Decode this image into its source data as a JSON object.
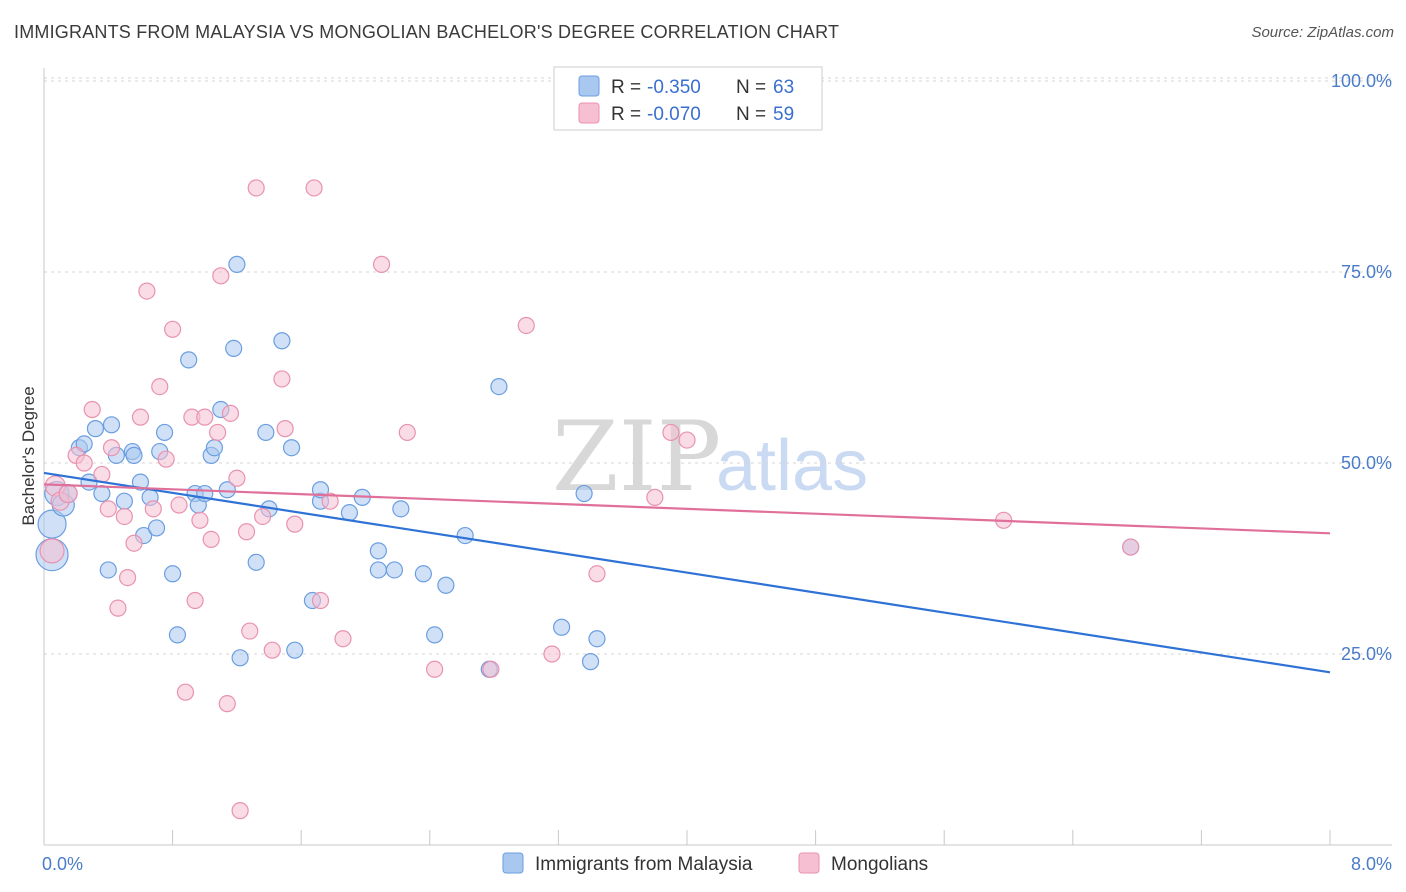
{
  "title": "IMMIGRANTS FROM MALAYSIA VS MONGOLIAN BACHELOR'S DEGREE CORRELATION CHART",
  "source": "Source: ZipAtlas.com",
  "watermark": {
    "zip": "ZIP",
    "atlas": "atlas"
  },
  "colors": {
    "blue_fill": "#a9c8f0",
    "blue_stroke": "#6b9ee0",
    "blue_line": "#2f72d6",
    "pink_fill": "#f6c0d2",
    "pink_stroke": "#e892b0",
    "pink_line": "#e0709a",
    "grid": "#d5d5d5",
    "tick_label": "#4a7cc9"
  },
  "legend": {
    "rows": [
      {
        "r_label": "R =",
        "r_value": "-0.350",
        "n_label": "N =",
        "n_value": "63",
        "color": "blue"
      },
      {
        "r_label": "R =",
        "r_value": "-0.070",
        "n_label": "N =",
        "n_value": "59",
        "color": "pink"
      }
    ]
  },
  "chart_data": {
    "type": "scatter",
    "title": "IMMIGRANTS FROM MALAYSIA VS MONGOLIAN BACHELOR'S DEGREE CORRELATION CHART",
    "xlabel": "",
    "ylabel": "Bachelor's Degree",
    "xlim": [
      0,
      8
    ],
    "ylim": [
      0,
      105
    ],
    "x_tick_labels": [
      "0.0%",
      "8.0%"
    ],
    "y_ticks": [
      25,
      50,
      75,
      100
    ],
    "y_tick_labels": [
      "25.0%",
      "50.0%",
      "75.0%",
      "100.0%"
    ],
    "grid": true,
    "legend_position": "bottom",
    "series": [
      {
        "name": "Immigrants from Malaysia",
        "color": "blue",
        "trend": {
          "x": [
            0,
            8
          ],
          "y": [
            48.7,
            22.6
          ]
        },
        "points": [
          [
            0.05,
            38,
            16
          ],
          [
            0.05,
            42,
            14
          ],
          [
            0.08,
            46,
            12
          ],
          [
            0.12,
            44.5,
            11
          ],
          [
            0.15,
            46,
            9
          ],
          [
            0.22,
            52,
            8
          ],
          [
            0.25,
            52.5,
            8
          ],
          [
            0.28,
            47.5,
            8
          ],
          [
            0.32,
            54.5,
            8
          ],
          [
            0.36,
            46,
            8
          ],
          [
            0.4,
            36,
            8
          ],
          [
            0.42,
            55,
            8
          ],
          [
            0.45,
            51,
            8
          ],
          [
            0.5,
            45,
            8
          ],
          [
            0.55,
            51.5,
            8
          ],
          [
            0.56,
            51,
            8
          ],
          [
            0.6,
            47.5,
            8
          ],
          [
            0.62,
            40.5,
            8
          ],
          [
            0.66,
            45.5,
            8
          ],
          [
            0.7,
            41.5,
            8
          ],
          [
            0.72,
            51.5,
            8
          ],
          [
            0.75,
            54,
            8
          ],
          [
            0.8,
            35.5,
            8
          ],
          [
            0.83,
            27.5,
            8
          ],
          [
            0.9,
            63.5,
            8
          ],
          [
            0.94,
            46,
            8
          ],
          [
            0.96,
            44.5,
            8
          ],
          [
            1.0,
            46,
            8
          ],
          [
            1.04,
            51,
            8
          ],
          [
            1.06,
            52,
            8
          ],
          [
            1.1,
            57,
            8
          ],
          [
            1.14,
            46.5,
            8
          ],
          [
            1.18,
            65,
            8
          ],
          [
            1.2,
            76,
            8
          ],
          [
            1.22,
            24.5,
            8
          ],
          [
            1.32,
            37,
            8
          ],
          [
            1.38,
            54,
            8
          ],
          [
            1.4,
            44,
            8
          ],
          [
            1.48,
            66,
            8
          ],
          [
            1.54,
            52,
            8
          ],
          [
            1.56,
            25.5,
            8
          ],
          [
            1.67,
            32,
            8
          ],
          [
            1.72,
            45,
            8
          ],
          [
            1.72,
            46.5,
            8
          ],
          [
            1.9,
            43.5,
            8
          ],
          [
            1.98,
            45.5,
            8
          ],
          [
            2.08,
            38.5,
            8
          ],
          [
            2.08,
            36,
            8
          ],
          [
            2.18,
            36,
            8
          ],
          [
            2.22,
            44,
            8
          ],
          [
            2.36,
            35.5,
            8
          ],
          [
            2.43,
            27.5,
            8
          ],
          [
            2.5,
            34,
            8
          ],
          [
            2.62,
            40.5,
            8
          ],
          [
            2.77,
            23,
            8
          ],
          [
            2.83,
            60,
            8
          ],
          [
            3.22,
            28.5,
            8
          ],
          [
            3.36,
            46,
            8
          ],
          [
            3.4,
            24,
            8
          ],
          [
            3.44,
            27,
            8
          ],
          [
            6.76,
            39,
            8
          ]
        ]
      },
      {
        "name": "Mongolians",
        "color": "pink",
        "trend": {
          "x": [
            0,
            8
          ],
          "y": [
            47.2,
            40.8
          ]
        },
        "points": [
          [
            0.05,
            38.5,
            12
          ],
          [
            0.07,
            47,
            10
          ],
          [
            0.1,
            45,
            9
          ],
          [
            0.15,
            46,
            9
          ],
          [
            0.2,
            51,
            8
          ],
          [
            0.25,
            50,
            8
          ],
          [
            0.3,
            57,
            8
          ],
          [
            0.36,
            48.5,
            8
          ],
          [
            0.4,
            44,
            8
          ],
          [
            0.42,
            52,
            8
          ],
          [
            0.46,
            31,
            8
          ],
          [
            0.5,
            43,
            8
          ],
          [
            0.52,
            35,
            8
          ],
          [
            0.56,
            39.5,
            8
          ],
          [
            0.6,
            56,
            8
          ],
          [
            0.64,
            72.5,
            8
          ],
          [
            0.68,
            44,
            8
          ],
          [
            0.72,
            60,
            8
          ],
          [
            0.76,
            50.5,
            8
          ],
          [
            0.8,
            67.5,
            8
          ],
          [
            0.84,
            44.5,
            8
          ],
          [
            0.88,
            20,
            8
          ],
          [
            0.92,
            56,
            8
          ],
          [
            0.94,
            32,
            8
          ],
          [
            0.97,
            42.5,
            8
          ],
          [
            1.0,
            56,
            8
          ],
          [
            1.04,
            40,
            8
          ],
          [
            1.08,
            54,
            8
          ],
          [
            1.1,
            74.5,
            8
          ],
          [
            1.14,
            18.5,
            8
          ],
          [
            1.16,
            56.5,
            8
          ],
          [
            1.2,
            48,
            8
          ],
          [
            1.22,
            4.5,
            8
          ],
          [
            1.26,
            41,
            8
          ],
          [
            1.28,
            28,
            8
          ],
          [
            1.32,
            86,
            8
          ],
          [
            1.36,
            43,
            8
          ],
          [
            1.42,
            25.5,
            8
          ],
          [
            1.48,
            61,
            8
          ],
          [
            1.5,
            54.5,
            8
          ],
          [
            1.56,
            42,
            8
          ],
          [
            1.68,
            86,
            8
          ],
          [
            1.72,
            32,
            8
          ],
          [
            1.78,
            45,
            8
          ],
          [
            1.86,
            27,
            8
          ],
          [
            2.1,
            76,
            8
          ],
          [
            2.26,
            54,
            8
          ],
          [
            2.43,
            23,
            8
          ],
          [
            2.78,
            23,
            8
          ],
          [
            3.0,
            68,
            8
          ],
          [
            3.16,
            25,
            8
          ],
          [
            3.44,
            35.5,
            8
          ],
          [
            3.8,
            45.5,
            8
          ],
          [
            3.9,
            54,
            8
          ],
          [
            4.0,
            53,
            8
          ],
          [
            5.97,
            42.5,
            8
          ],
          [
            6.76,
            39,
            8
          ]
        ]
      }
    ]
  },
  "bottom_legend": [
    {
      "label": "Immigrants from Malaysia",
      "color": "blue"
    },
    {
      "label": "Mongolians",
      "color": "pink"
    }
  ]
}
